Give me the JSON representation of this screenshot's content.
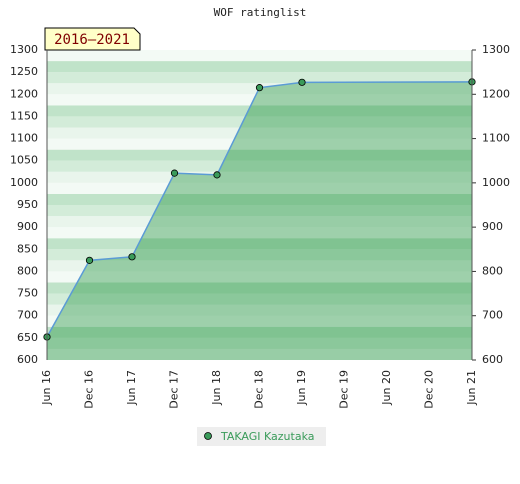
{
  "chart_data": {
    "type": "line",
    "title": "WOF ratinglist",
    "badge": "2016–2021",
    "categories": [
      "Jun 16",
      "Dec 16",
      "Jun 17",
      "Dec 17",
      "Jun 18",
      "Dec 18",
      "Jun 19",
      "Dec 19",
      "Jun 20",
      "Dec 20",
      "Jun 21"
    ],
    "series": [
      {
        "name": "TAKAGI Kazutaka",
        "color": "#5b9bd5",
        "x": [
          "Jun 16",
          "Dec 16",
          "Jun 17",
          "Dec 17",
          "Jun 18",
          "Dec 18",
          "Jun 19",
          "Jun 21"
        ],
        "values": [
          652,
          825,
          833,
          1022,
          1018,
          1215,
          1227,
          1228
        ]
      }
    ],
    "ylim": [
      600,
      1300
    ],
    "yticks": [
      600,
      650,
      700,
      750,
      800,
      850,
      900,
      950,
      1000,
      1050,
      1100,
      1150,
      1200,
      1250,
      1300
    ],
    "y2lim": [
      600,
      1300
    ],
    "y2ticks": [
      600,
      700,
      800,
      900,
      1000,
      1100,
      1200,
      1300
    ]
  }
}
